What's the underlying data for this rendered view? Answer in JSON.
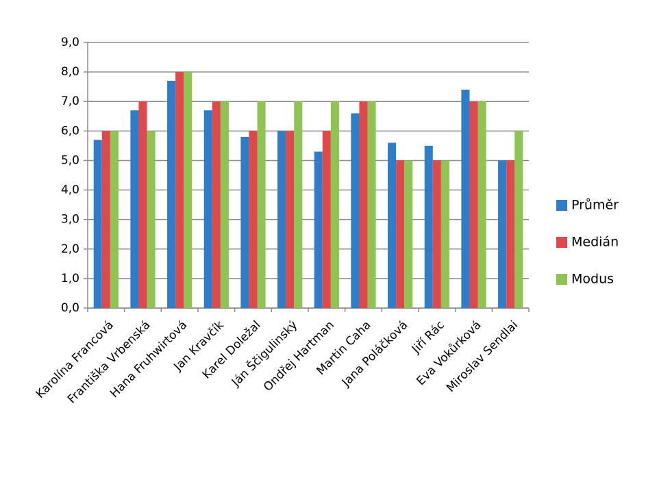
{
  "chart_data": {
    "type": "bar",
    "categories": [
      "Karolína Francová",
      "Františka Vrbenská",
      "Hana Fruhwirtová",
      "Jan Kravčík",
      "Karel Doležal",
      "Ján Ščigulinský",
      "Ondřej Hartman",
      "Martin Caha",
      "Jana Poláčková",
      "Jiří Rác",
      "Eva Vokůrková",
      "Miroslav Sendlai"
    ],
    "series": [
      {
        "name": "Průměr",
        "color": "#2f7dc8",
        "values": [
          5.7,
          6.7,
          7.7,
          6.7,
          5.8,
          6.0,
          5.3,
          6.6,
          5.6,
          5.5,
          7.4,
          5.0
        ]
      },
      {
        "name": "Medián",
        "color": "#e0494c",
        "values": [
          6,
          7,
          8,
          7,
          6,
          6,
          6,
          7,
          5,
          5,
          7,
          5
        ]
      },
      {
        "name": "Modus",
        "color": "#8fc454",
        "values": [
          6,
          6,
          8,
          7,
          7,
          7,
          7,
          7,
          5,
          5,
          7,
          6
        ]
      }
    ],
    "ylim": [
      0,
      9
    ],
    "yticks": [
      {
        "value": 0,
        "label": "0,0"
      },
      {
        "value": 1,
        "label": "1,0"
      },
      {
        "value": 2,
        "label": "2,0"
      },
      {
        "value": 3,
        "label": "3,0"
      },
      {
        "value": 4,
        "label": "4,0"
      },
      {
        "value": 5,
        "label": "5,0"
      },
      {
        "value": 6,
        "label": "6,0"
      },
      {
        "value": 7,
        "label": "7,0"
      },
      {
        "value": 8,
        "label": "8,0"
      },
      {
        "value": 9,
        "label": "9,0"
      }
    ],
    "grid": true,
    "legend": "right"
  }
}
